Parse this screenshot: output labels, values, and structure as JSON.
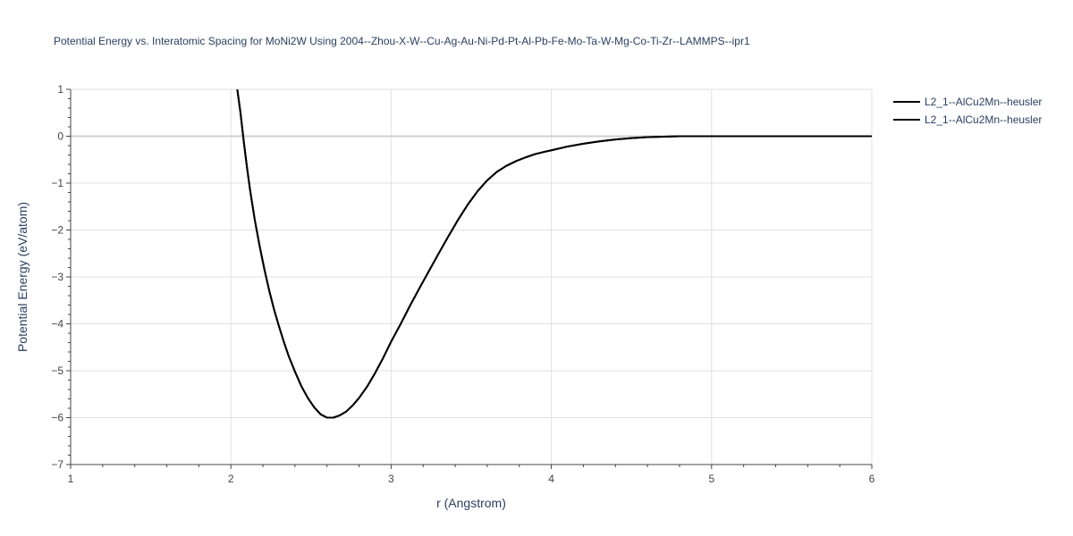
{
  "chart_data": {
    "type": "line",
    "title": "Potential Energy vs. Interatomic Spacing for MoNi2W Using 2004--Zhou-X-W--Cu-Ag-Au-Ni-Pd-Pt-Al-Pb-Fe-Mo-Ta-W-Mg-Co-Ti-Zr--LAMMPS--ipr1",
    "xlabel": "r (Angstrom)",
    "ylabel": "Potential Energy (eV/atom)",
    "xlim": [
      1,
      6
    ],
    "ylim": [
      -7,
      1
    ],
    "x_ticks": [
      1,
      2,
      3,
      4,
      5,
      6
    ],
    "y_ticks": [
      1,
      0,
      -1,
      -2,
      -3,
      -4,
      -5,
      -6,
      -7
    ],
    "x_tick_labels": [
      "1",
      "2",
      "3",
      "4",
      "5",
      "6"
    ],
    "y_tick_labels": [
      "1",
      "0",
      "−1",
      "−2",
      "−3",
      "−4",
      "−5",
      "−6",
      "−7"
    ],
    "grid": true,
    "legend_position": "top-right",
    "series": [
      {
        "name": "L2_1--AlCu2Mn--heusler",
        "color": "#000000",
        "x": [
          2.04,
          2.06,
          2.08,
          2.1,
          2.12,
          2.15,
          2.18,
          2.21,
          2.24,
          2.27,
          2.3,
          2.33,
          2.36,
          2.4,
          2.44,
          2.48,
          2.52,
          2.56,
          2.6,
          2.64,
          2.68,
          2.72,
          2.76,
          2.8,
          2.85,
          2.9,
          2.95,
          3.0,
          3.06,
          3.12,
          3.18,
          3.24,
          3.3,
          3.36,
          3.42,
          3.48,
          3.54,
          3.6,
          3.66,
          3.72,
          3.78,
          3.84,
          3.9,
          3.96,
          4.0,
          4.1,
          4.2,
          4.3,
          4.4,
          4.5,
          4.6,
          4.7,
          4.8,
          4.9,
          5.0,
          5.2,
          5.5,
          6.0
        ],
        "y": [
          1.0,
          0.5,
          -0.1,
          -0.65,
          -1.15,
          -1.8,
          -2.35,
          -2.85,
          -3.3,
          -3.7,
          -4.05,
          -4.38,
          -4.68,
          -5.02,
          -5.33,
          -5.58,
          -5.78,
          -5.93,
          -6.0,
          -6.0,
          -5.95,
          -5.87,
          -5.74,
          -5.58,
          -5.34,
          -5.05,
          -4.73,
          -4.38,
          -4.0,
          -3.6,
          -3.22,
          -2.85,
          -2.48,
          -2.12,
          -1.77,
          -1.45,
          -1.17,
          -0.94,
          -0.76,
          -0.63,
          -0.53,
          -0.45,
          -0.38,
          -0.33,
          -0.3,
          -0.22,
          -0.16,
          -0.11,
          -0.07,
          -0.04,
          -0.02,
          -0.01,
          0.0,
          0.0,
          0.0,
          0.0,
          0.0,
          0.0
        ]
      },
      {
        "name": "L2_1--AlCu2Mn--heusler",
        "color": "#000000",
        "x": [
          2.04,
          2.06,
          2.08,
          2.1,
          2.12,
          2.15,
          2.18,
          2.21,
          2.24,
          2.27,
          2.3,
          2.33,
          2.36,
          2.4,
          2.44,
          2.48,
          2.52,
          2.56,
          2.6,
          2.64,
          2.68,
          2.72,
          2.76,
          2.8,
          2.85,
          2.9,
          2.95,
          3.0,
          3.06,
          3.12,
          3.18,
          3.24,
          3.3,
          3.36,
          3.42,
          3.48,
          3.54,
          3.6,
          3.66,
          3.72,
          3.78,
          3.84,
          3.9,
          3.96,
          4.0,
          4.1,
          4.2,
          4.3,
          4.4,
          4.5,
          4.6,
          4.7,
          4.8,
          4.9,
          5.0,
          5.2,
          5.5,
          6.0
        ],
        "y": [
          1.0,
          0.5,
          -0.1,
          -0.65,
          -1.15,
          -1.8,
          -2.35,
          -2.85,
          -3.3,
          -3.7,
          -4.05,
          -4.38,
          -4.68,
          -5.02,
          -5.33,
          -5.58,
          -5.78,
          -5.93,
          -6.0,
          -6.0,
          -5.95,
          -5.87,
          -5.74,
          -5.58,
          -5.34,
          -5.05,
          -4.73,
          -4.38,
          -4.0,
          -3.6,
          -3.22,
          -2.85,
          -2.48,
          -2.12,
          -1.77,
          -1.45,
          -1.17,
          -0.94,
          -0.76,
          -0.63,
          -0.53,
          -0.45,
          -0.38,
          -0.33,
          -0.3,
          -0.22,
          -0.16,
          -0.11,
          -0.07,
          -0.04,
          -0.02,
          -0.01,
          0.0,
          0.0,
          0.0,
          0.0,
          0.0,
          0.0
        ]
      }
    ]
  }
}
